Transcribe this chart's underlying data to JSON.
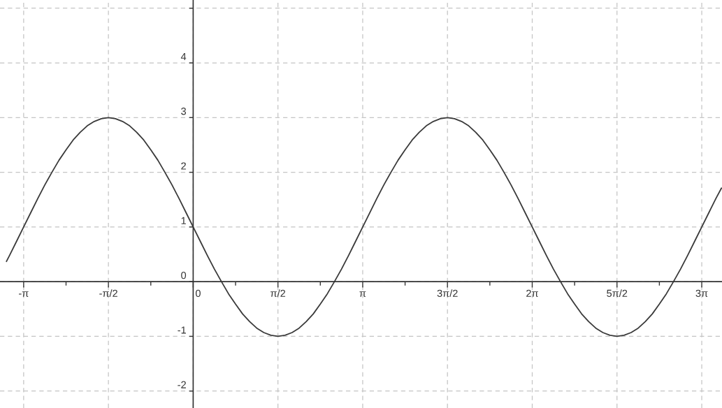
{
  "chart_data": {
    "type": "line",
    "x": [
      -3.46,
      -3.403,
      -3.272,
      -3.142,
      -3.011,
      -2.88,
      -2.749,
      -2.618,
      -2.487,
      -2.356,
      -2.225,
      -2.094,
      -1.963,
      -1.833,
      -1.702,
      -1.571,
      -1.44,
      -1.309,
      -1.178,
      -1.047,
      -0.916,
      -0.785,
      -0.654,
      -0.524,
      -0.393,
      -0.262,
      -0.131,
      0,
      0.131,
      0.262,
      0.393,
      0.524,
      0.654,
      0.785,
      0.916,
      1.047,
      1.178,
      1.309,
      1.44,
      1.571,
      1.702,
      1.833,
      1.963,
      2.094,
      2.225,
      2.356,
      2.487,
      2.618,
      2.749,
      2.88,
      3.011,
      3.142,
      3.272,
      3.403,
      3.534,
      3.665,
      3.796,
      3.927,
      4.058,
      4.189,
      4.32,
      4.451,
      4.581,
      4.712,
      4.843,
      4.974,
      5.105,
      5.236,
      5.367,
      5.498,
      5.629,
      5.76,
      5.89,
      6.021,
      6.152,
      6.283,
      6.414,
      6.545,
      6.676,
      6.807,
      6.938,
      7.069,
      7.199,
      7.33,
      7.461,
      7.592,
      7.723,
      7.854,
      7.985,
      8.116,
      8.247,
      8.378,
      8.508,
      8.639,
      8.77,
      8.901,
      9.032,
      9.163,
      9.294,
      9.425,
      9.556,
      9.687,
      9.79
    ],
    "series": [
      {
        "color": "#3a3a3a",
        "values": [
          0.37,
          0.48,
          0.74,
          1,
          1.26,
          1.52,
          1.77,
          2,
          2.22,
          2.41,
          2.59,
          2.73,
          2.85,
          2.93,
          2.98,
          3,
          2.98,
          2.93,
          2.85,
          2.73,
          2.59,
          2.41,
          2.22,
          2,
          1.77,
          1.52,
          1.26,
          1,
          0.74,
          0.48,
          0.23,
          0,
          -0.22,
          -0.41,
          -0.59,
          -0.73,
          -0.85,
          -0.93,
          -0.98,
          -1,
          -0.98,
          -0.93,
          -0.85,
          -0.73,
          -0.59,
          -0.41,
          -0.22,
          0,
          0.23,
          0.48,
          0.74,
          1,
          1.26,
          1.52,
          1.77,
          2,
          2.22,
          2.41,
          2.59,
          2.73,
          2.85,
          2.93,
          2.98,
          3,
          2.98,
          2.93,
          2.85,
          2.73,
          2.59,
          2.41,
          2.22,
          2,
          1.77,
          1.52,
          1.26,
          1,
          0.74,
          0.48,
          0.23,
          0,
          -0.22,
          -0.41,
          -0.59,
          -0.73,
          -0.85,
          -0.93,
          -0.98,
          -1,
          -0.98,
          -0.93,
          -0.85,
          -0.73,
          -0.59,
          -0.41,
          -0.22,
          0,
          0.23,
          0.48,
          0.74,
          1,
          1.26,
          1.52,
          1.71
        ]
      }
    ],
    "xlim": [
      -3.58,
      9.8
    ],
    "ylim": [
      -2.31,
      5.15
    ],
    "xticks": [
      {
        "value": -3.1416,
        "label": "-π"
      },
      {
        "value": -2.3562,
        "label": null
      },
      {
        "value": -1.5708,
        "label": "-π/2"
      },
      {
        "value": -0.7854,
        "label": null
      },
      0,
      {
        "value": 0.7854,
        "label": null
      },
      {
        "value": 1.5708,
        "label": "π/2"
      },
      {
        "value": 2.3562,
        "label": null
      },
      {
        "value": 3.1416,
        "label": "π"
      },
      {
        "value": 3.927,
        "label": null
      },
      {
        "value": 4.7124,
        "label": "3π/2"
      },
      {
        "value": 5.4978,
        "label": null
      },
      {
        "value": 6.2832,
        "label": "2π"
      },
      {
        "value": 7.0686,
        "label": null
      },
      {
        "value": 7.854,
        "label": "5π/2"
      },
      {
        "value": 8.6394,
        "label": null
      },
      {
        "value": 9.4248,
        "label": "3π"
      }
    ],
    "yticks": [
      -2,
      -1,
      0,
      1,
      2,
      3,
      4,
      {
        "value": 5,
        "label": null
      }
    ],
    "grid": true,
    "line_style": "solid"
  }
}
